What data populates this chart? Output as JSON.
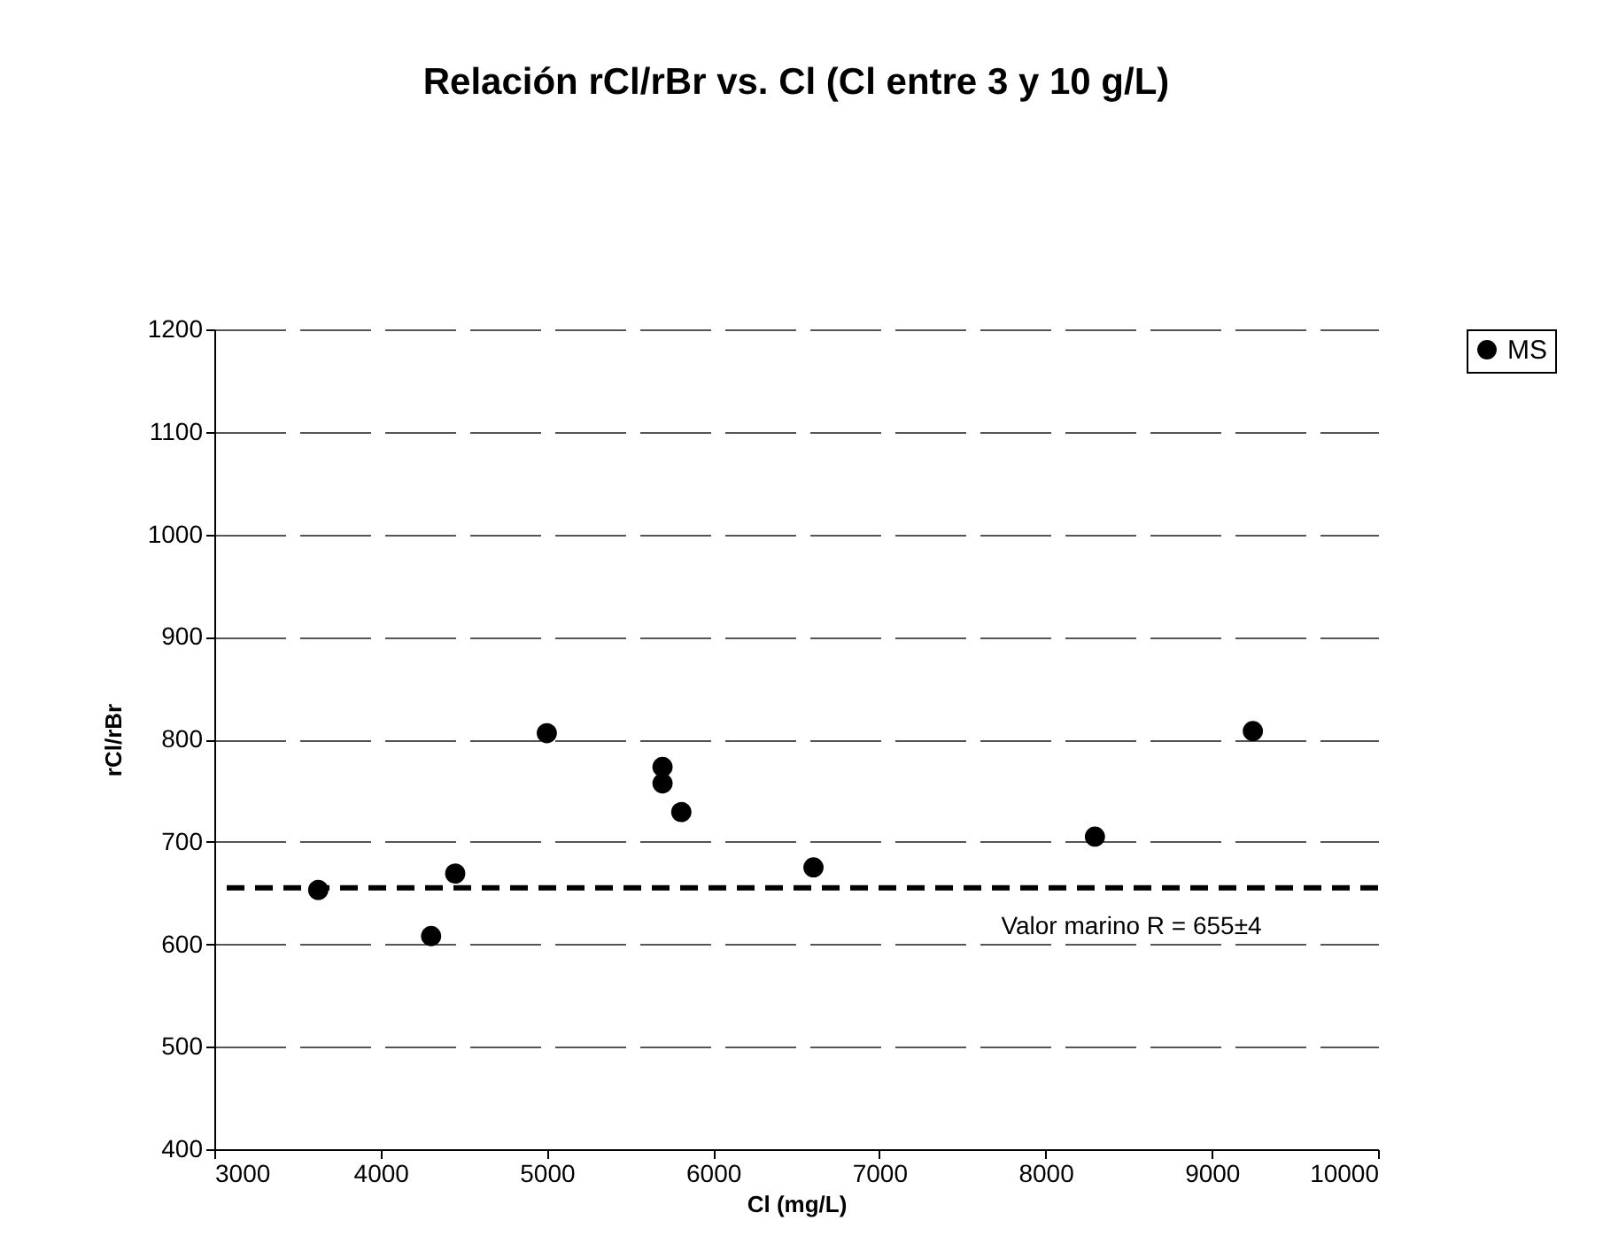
{
  "chart_data": {
    "type": "scatter",
    "title": "Relación rCl/rBr vs. Cl (Cl entre 3 y 10 g/L)",
    "xlabel": "Cl (mg/L)",
    "ylabel": "rCl/rBr",
    "x": [
      3625,
      4304,
      4449,
      5000,
      5696,
      5696,
      5809,
      6604,
      8297,
      9247
    ],
    "series": [
      {
        "name": "MS",
        "color": "#000000",
        "values": [
          653,
          608,
          669,
          806,
          773,
          757,
          729,
          675,
          705,
          808
        ]
      }
    ],
    "xlim": [
      3000,
      10000
    ],
    "xticks": [
      3000,
      4000,
      5000,
      6000,
      7000,
      8000,
      9000,
      10000
    ],
    "ylim": [
      400,
      1200
    ],
    "yticks": [
      400,
      500,
      600,
      700,
      800,
      900,
      1000,
      1100,
      1200
    ],
    "ref_lines": [
      {
        "axis": "y",
        "value": 655,
        "label": "Valor marino R = 655±4",
        "color": "#000000",
        "line_style": "dashed"
      }
    ],
    "grid": "y",
    "legend": "right",
    "marker": "circle"
  }
}
